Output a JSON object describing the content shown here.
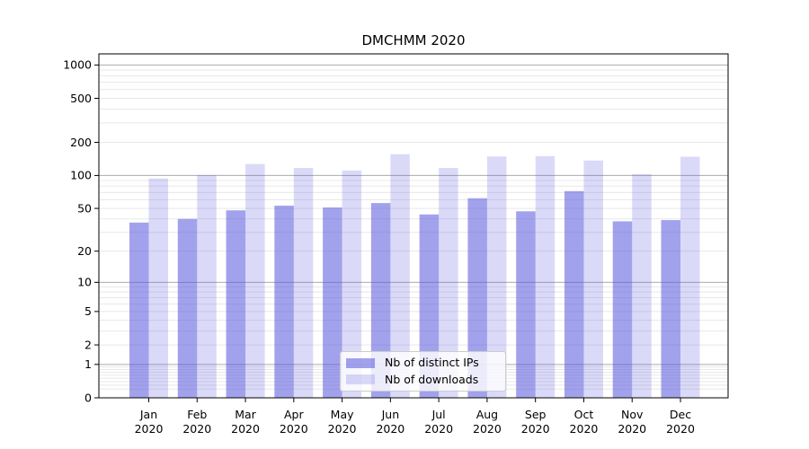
{
  "title": "DMCHMM 2020",
  "chart_data": {
    "type": "bar",
    "title": "DMCHMM 2020",
    "y_scale": "log10(1+x)",
    "grid": "major+minor",
    "legend_position": "lower-center",
    "categories": [
      "Jan 2020",
      "Feb 2020",
      "Mar 2020",
      "Apr 2020",
      "May 2020",
      "Jun 2020",
      "Jul 2020",
      "Aug 2020",
      "Sep 2020",
      "Oct 2020",
      "Nov 2020",
      "Dec 2020"
    ],
    "series": [
      {
        "name": "Nb of distinct IPs",
        "color": "rgba(85,85,221,0.55)",
        "values": [
          37,
          40,
          48,
          53,
          51,
          56,
          44,
          62,
          47,
          72,
          38,
          39
        ]
      },
      {
        "name": "Nb of downloads",
        "color": "rgba(85,85,221,0.22)",
        "values": [
          94,
          101,
          127,
          117,
          111,
          156,
          117,
          149,
          150,
          137,
          103,
          148
        ]
      }
    ],
    "y_ticks": [
      1000,
      500,
      200,
      100,
      50,
      20,
      10,
      5,
      2,
      1,
      0
    ],
    "ylim": [
      0,
      1260
    ]
  },
  "colors": {
    "grid_major": "#ababab",
    "grid_minor": "#e8e8e8",
    "axis": "#000000",
    "legend_border": "#cccccc",
    "background": "#ffffff"
  }
}
